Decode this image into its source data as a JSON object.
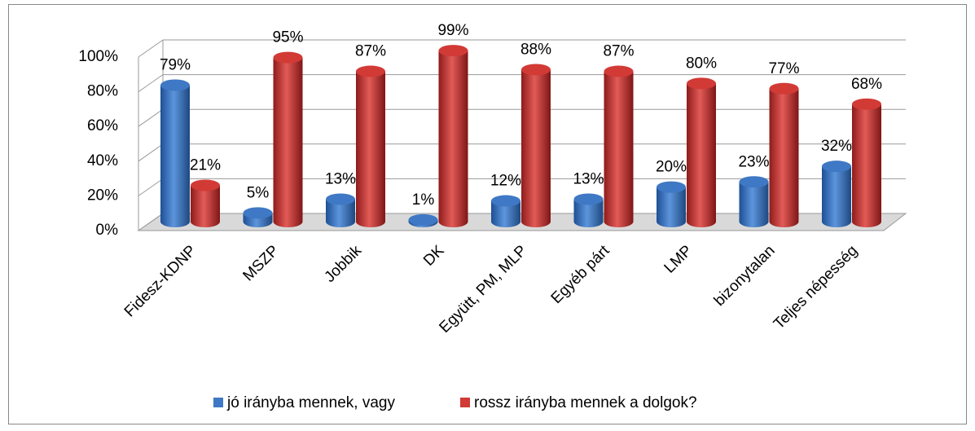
{
  "chart_data": {
    "type": "bar3d",
    "categories": [
      "Fidesz-KDNP",
      "MSZP",
      "Jobbik",
      "DK",
      "Együtt, PM, MLP",
      "Egyéb párt",
      "LMP",
      "bizonytalan",
      "Teljes népesség"
    ],
    "series": [
      {
        "name": "jó irányba mennek, vagy",
        "color": "#3f78c4",
        "values": [
          79,
          5,
          13,
          1,
          12,
          13,
          20,
          23,
          32
        ],
        "value_labels": [
          "79%",
          "5%",
          "13%",
          "1%",
          "12%",
          "13%",
          "20%",
          "23%",
          "32%"
        ]
      },
      {
        "name": "rossz irányba mennek a dolgok?",
        "color": "#d23a36",
        "values": [
          21,
          95,
          87,
          99,
          88,
          87,
          80,
          77,
          68
        ],
        "value_labels": [
          "21%",
          "95%",
          "87%",
          "99%",
          "88%",
          "87%",
          "80%",
          "77%",
          "68%"
        ]
      }
    ],
    "ylim": [
      0,
      100
    ],
    "yticks": [
      {
        "value": 0,
        "label": "0%"
      },
      {
        "value": 20,
        "label": "20%"
      },
      {
        "value": 40,
        "label": "40%"
      },
      {
        "value": 60,
        "label": "60%"
      },
      {
        "value": 80,
        "label": "80%"
      },
      {
        "value": 100,
        "label": "100%"
      }
    ],
    "grid": true,
    "legend": "bottom"
  }
}
